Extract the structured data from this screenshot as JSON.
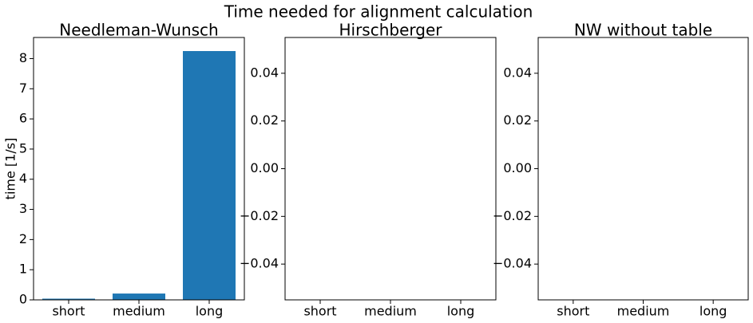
{
  "title": "Time needed for alignment calculation",
  "chart_data": [
    {
      "type": "bar",
      "title": "Needleman-Wunsch",
      "ylabel": "time [1/s]",
      "categories": [
        "short",
        "medium",
        "long"
      ],
      "values": [
        0.04,
        0.21,
        8.25
      ],
      "color": "#1f77b4",
      "ylim": [
        0,
        8.7
      ],
      "yticks": [
        0,
        1,
        2,
        3,
        4,
        5,
        6,
        7,
        8
      ]
    },
    {
      "type": "bar",
      "title": "Hirschberger",
      "categories": [
        "short",
        "medium",
        "long"
      ],
      "values": [
        null,
        null,
        null
      ],
      "color": "#1f77b4",
      "ylim": [
        -0.055,
        0.055
      ],
      "yticks": [
        {
          "value": -0.04,
          "label": "−0.04"
        },
        {
          "value": -0.02,
          "label": "−0.02"
        },
        {
          "value": 0,
          "label": "0.00"
        },
        0.02,
        0.04
      ]
    },
    {
      "type": "bar",
      "title": "NW without table",
      "categories": [
        "short",
        "medium",
        "long"
      ],
      "values": [
        null,
        null,
        null
      ],
      "color": "#1f77b4",
      "ylim": [
        -0.055,
        0.055
      ],
      "yticks": [
        {
          "value": -0.04,
          "label": "−0.04"
        },
        {
          "value": -0.02,
          "label": "−0.02"
        },
        {
          "value": 0,
          "label": "0.00"
        },
        0.02,
        0.04
      ]
    }
  ]
}
